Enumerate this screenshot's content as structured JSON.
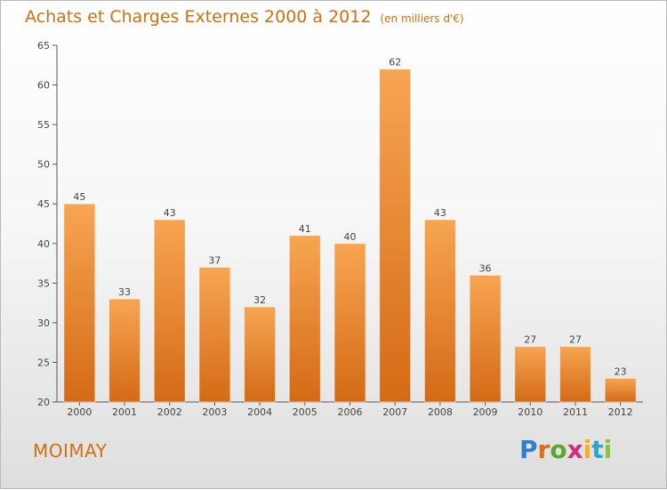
{
  "header": {
    "title": "Achats et Charges Externes 2000 à 2012",
    "unit": "(en milliers d'€)"
  },
  "footer": {
    "town": "MOIMAY",
    "logo_letters": [
      "P",
      "r",
      "o",
      "x",
      "i",
      "t",
      "i"
    ],
    "logo_colors": [
      "#2f7fd1",
      "#e36b1b",
      "#5aa72f",
      "#d62b7c",
      "#f2b21b",
      "#2fa6c9",
      "#8ac43f"
    ]
  },
  "colors": {
    "bar_light": "#f7a552",
    "bar_dark": "#d46a16",
    "accent": "#d0700f"
  },
  "chart_data": {
    "type": "bar",
    "title": "Achats et Charges Externes 2000 à 2012",
    "categories": [
      "2000",
      "2001",
      "2002",
      "2003",
      "2004",
      "2005",
      "2006",
      "2007",
      "2008",
      "2009",
      "2010",
      "2011",
      "2012"
    ],
    "values": [
      45,
      33,
      43,
      37,
      32,
      41,
      40,
      62,
      43,
      36,
      27,
      27,
      23
    ],
    "ylim": [
      20,
      65
    ],
    "yticks": [
      20,
      25,
      30,
      35,
      40,
      45,
      50,
      55,
      60,
      65
    ],
    "grid": false,
    "legend": "none"
  }
}
